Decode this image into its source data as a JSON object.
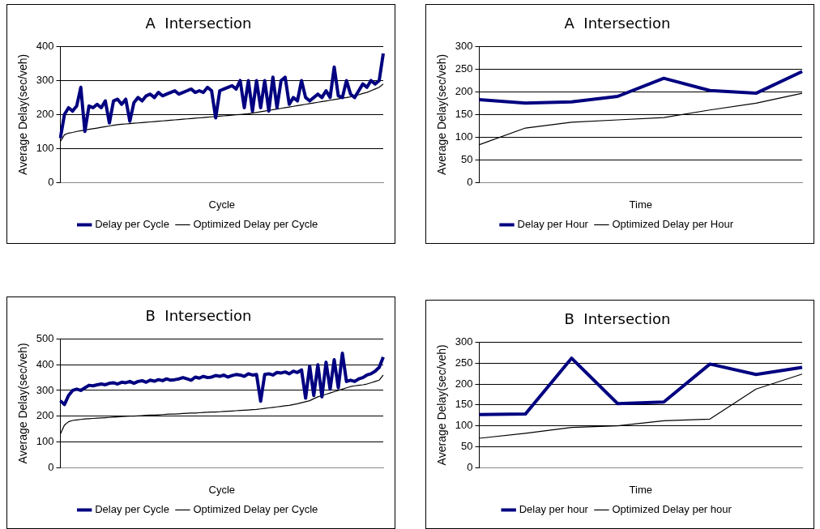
{
  "chart_data": [
    {
      "type": "line",
      "title": "A  Intersection",
      "xlabel": "Cycle",
      "ylabel": "Average Delay(sec/veh)",
      "categories": [
        null,
        null,
        null,
        null,
        null,
        null,
        null,
        null,
        null,
        null,
        null,
        null,
        null,
        null,
        null,
        null,
        null,
        null,
        null,
        null,
        null,
        null,
        null,
        null,
        null,
        null,
        null,
        null,
        null,
        null,
        null,
        null,
        null,
        null,
        null,
        null,
        null,
        null,
        null,
        null,
        null,
        null,
        null,
        null,
        null,
        null,
        null,
        null,
        null,
        null,
        null,
        null,
        null,
        null,
        null,
        null,
        null,
        null,
        null,
        null,
        null,
        null,
        null,
        null,
        null,
        null,
        null,
        null,
        null,
        null,
        null,
        null,
        null,
        null,
        null,
        null,
        null,
        null,
        null,
        null
      ],
      "ylim": [
        0,
        400
      ],
      "yticks": [
        0,
        100,
        200,
        300,
        400
      ],
      "grid": "y",
      "legend": "bottom",
      "marker": "none",
      "line_style": "solid",
      "series": [
        {
          "name": "Delay per Cycle",
          "color": "#000080",
          "values": [
            130,
            200,
            220,
            210,
            225,
            280,
            150,
            225,
            220,
            230,
            220,
            240,
            175,
            240,
            245,
            230,
            245,
            180,
            235,
            250,
            240,
            255,
            260,
            250,
            265,
            255,
            260,
            265,
            270,
            260,
            265,
            270,
            275,
            265,
            270,
            265,
            280,
            270,
            190,
            270,
            275,
            280,
            285,
            275,
            300,
            220,
            300,
            210,
            300,
            220,
            300,
            210,
            310,
            220,
            300,
            310,
            230,
            250,
            240,
            300,
            250,
            240,
            250,
            260,
            250,
            270,
            250,
            340,
            255,
            250,
            300,
            260,
            250,
            270,
            290,
            280,
            300,
            290,
            300,
            380
          ]
        },
        {
          "name": "Optimized Delay per Cycle",
          "color": "#000000",
          "values": [
            120,
            140,
            145,
            147,
            150,
            152,
            154,
            156,
            158,
            160,
            162,
            164,
            166,
            168,
            170,
            171,
            172,
            173,
            174,
            175,
            176,
            177,
            178,
            179,
            180,
            181,
            182,
            183,
            184,
            185,
            186,
            187,
            188,
            189,
            190,
            191,
            192,
            193,
            194,
            195,
            196,
            197,
            198,
            199,
            200,
            201,
            202,
            204,
            206,
            208,
            210,
            212,
            214,
            216,
            218,
            220,
            222,
            224,
            226,
            228,
            230,
            232,
            234,
            236,
            238,
            240,
            242,
            244,
            246,
            248,
            250,
            252,
            255,
            258,
            262,
            265,
            270,
            275,
            280,
            290
          ]
        }
      ]
    },
    {
      "type": "line",
      "title": "A  Intersection",
      "xlabel": "Time",
      "ylabel": "Average Delay(sec/veh)",
      "categories": [
        null,
        null,
        null,
        null,
        null,
        null,
        null,
        null
      ],
      "ylim": [
        0,
        300
      ],
      "yticks": [
        0,
        50,
        100,
        150,
        200,
        250,
        300
      ],
      "grid": "y",
      "legend": "bottom",
      "marker": "none",
      "line_style": "solid",
      "series": [
        {
          "name": "Delay per Hour",
          "color": "#000080",
          "values": [
            183,
            175,
            178,
            190,
            230,
            203,
            197,
            245
          ]
        },
        {
          "name": "Optimized Delay per Hour",
          "color": "#000000",
          "values": [
            83,
            120,
            133,
            138,
            143,
            160,
            175,
            197
          ]
        }
      ]
    },
    {
      "type": "line",
      "title": "B  Intersection",
      "xlabel": "Cycle",
      "ylabel": "Average Delay(sec/veh)",
      "categories": [
        null,
        null,
        null,
        null,
        null,
        null,
        null,
        null,
        null,
        null,
        null,
        null,
        null,
        null,
        null,
        null,
        null,
        null,
        null,
        null,
        null,
        null,
        null,
        null,
        null,
        null,
        null,
        null,
        null,
        null,
        null,
        null,
        null,
        null,
        null,
        null,
        null,
        null,
        null,
        null,
        null,
        null,
        null,
        null,
        null,
        null,
        null,
        null,
        null,
        null,
        null,
        null,
        null,
        null,
        null,
        null,
        null,
        null,
        null,
        null,
        null,
        null,
        null,
        null,
        null,
        null,
        null,
        null,
        null,
        null,
        null,
        null,
        null,
        null,
        null,
        null,
        null,
        null,
        null,
        null
      ],
      "ylim": [
        0,
        500
      ],
      "yticks": [
        0,
        100,
        200,
        300,
        400,
        500
      ],
      "grid": "y",
      "legend": "bottom",
      "marker": "none",
      "line_style": "solid",
      "series": [
        {
          "name": "Delay per Cycle",
          "color": "#000080",
          "values": [
            260,
            245,
            280,
            300,
            305,
            300,
            310,
            320,
            318,
            322,
            325,
            322,
            328,
            330,
            325,
            332,
            330,
            335,
            328,
            335,
            338,
            332,
            340,
            336,
            342,
            338,
            345,
            340,
            342,
            345,
            350,
            345,
            340,
            352,
            348,
            355,
            350,
            352,
            358,
            355,
            360,
            352,
            358,
            362,
            360,
            355,
            365,
            360,
            362,
            258,
            362,
            365,
            360,
            370,
            368,
            372,
            365,
            375,
            370,
            380,
            270,
            395,
            280,
            400,
            275,
            410,
            305,
            420,
            310,
            445,
            335,
            340,
            335,
            345,
            350,
            360,
            365,
            375,
            390,
            430
          ]
        },
        {
          "name": "Optimized Delay per Cycle",
          "color": "#000000",
          "values": [
            130,
            165,
            178,
            183,
            185,
            187,
            189,
            190,
            191,
            192,
            193,
            194,
            195,
            196,
            197,
            198,
            199,
            200,
            200,
            201,
            202,
            203,
            204,
            204,
            205,
            206,
            207,
            208,
            208,
            209,
            210,
            211,
            212,
            212,
            213,
            214,
            215,
            216,
            216,
            217,
            218,
            219,
            220,
            221,
            222,
            223,
            224,
            225,
            226,
            228,
            230,
            232,
            234,
            236,
            238,
            240,
            242,
            245,
            248,
            252,
            256,
            260,
            268,
            275,
            280,
            285,
            290,
            295,
            300,
            305,
            310,
            315,
            318,
            320,
            322,
            325,
            330,
            335,
            340,
            360
          ]
        }
      ]
    },
    {
      "type": "line",
      "title": "B  Intersection",
      "xlabel": "Time",
      "ylabel": "Average Delay(sec/veh)",
      "categories": [
        null,
        null,
        null,
        null,
        null,
        null,
        null,
        null
      ],
      "ylim": [
        0,
        300
      ],
      "yticks": [
        0,
        50,
        100,
        150,
        200,
        250,
        300
      ],
      "grid": "y",
      "legend": "bottom",
      "marker": "none",
      "line_style": "solid",
      "series": [
        {
          "name": "Delay per hour",
          "color": "#000080",
          "values": [
            127,
            128,
            262,
            153,
            157,
            248,
            223,
            240
          ]
        },
        {
          "name": "Optimized Delay per hour",
          "color": "#000000",
          "values": [
            70,
            82,
            96,
            100,
            112,
            116,
            188,
            224
          ]
        }
      ]
    }
  ]
}
